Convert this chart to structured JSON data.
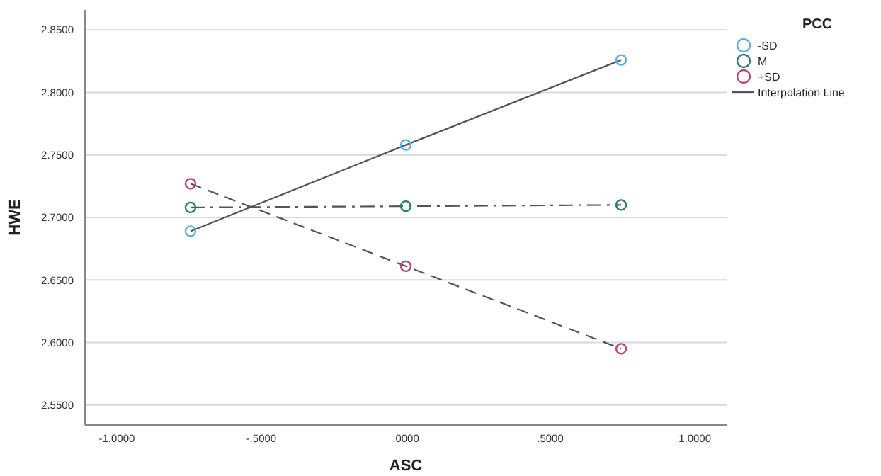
{
  "chart_data": {
    "type": "scatter",
    "xlabel": "ASC",
    "ylabel": "HWE",
    "legend_title": "PCC",
    "legend": "top right",
    "grid": "y",
    "marker": "circle",
    "xlim": [
      -1.11,
      1.11
    ],
    "ylim": [
      2.534,
      2.866
    ],
    "xticks": [
      {
        "value": -1,
        "label": "-1.0000"
      },
      {
        "value": -0.5,
        "label": "-.5000"
      },
      {
        "value": 0,
        "label": ".0000"
      },
      {
        "value": 0.5,
        "label": ".5000"
      },
      {
        "value": 1,
        "label": "1.0000"
      }
    ],
    "yticks": [
      {
        "value": 2.55,
        "label": "2.5500"
      },
      {
        "value": 2.6,
        "label": "2.6000"
      },
      {
        "value": 2.65,
        "label": "2.6500"
      },
      {
        "value": 2.7,
        "label": "2.7000"
      },
      {
        "value": 2.75,
        "label": "2.7500"
      },
      {
        "value": 2.8,
        "label": "2.8000"
      },
      {
        "value": 2.85,
        "label": "2.8500"
      }
    ],
    "series": [
      {
        "name": "-SD",
        "color": "#5aaee0",
        "x": [
          -0.745,
          0,
          0.745
        ],
        "values": [
          2.689,
          2.758,
          2.826
        ]
      },
      {
        "name": "M",
        "color": "#2e7a6e",
        "x": [
          -0.745,
          0,
          0.745
        ],
        "values": [
          2.708,
          2.709,
          2.71
        ]
      },
      {
        "name": "+SD",
        "color": "#b5456a",
        "x": [
          -0.745,
          0,
          0.745
        ],
        "values": [
          2.727,
          2.661,
          2.595
        ]
      },
      {
        "name": "Interpolation Line",
        "type": "line",
        "color": "#555555",
        "line_style": "solid",
        "marker": "none",
        "x": [
          -0.745,
          0,
          0.745
        ],
        "values": [
          2.689,
          2.758,
          2.826
        ]
      },
      {
        "type": "line",
        "color": "#555555",
        "line_style": "dashdot",
        "marker": "none",
        "x": [
          -0.745,
          0,
          0.745
        ],
        "values": [
          2.708,
          2.709,
          2.71
        ]
      },
      {
        "type": "line",
        "color": "#555555",
        "line_style": "dashed",
        "marker": "none",
        "x": [
          -0.745,
          0,
          0.745
        ],
        "values": [
          2.727,
          2.661,
          2.595
        ]
      }
    ]
  }
}
